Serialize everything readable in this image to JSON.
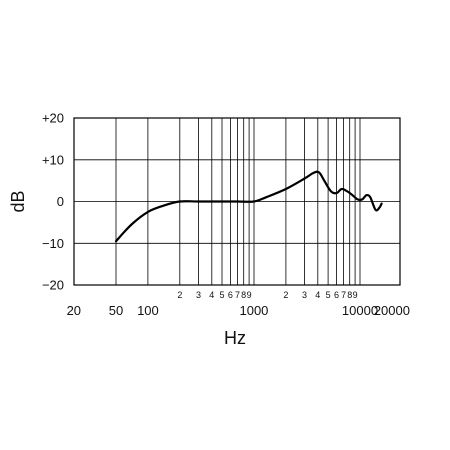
{
  "chart_data": {
    "type": "line",
    "title": "",
    "xlabel": "Hz",
    "ylabel": "dB",
    "x_scale": "log",
    "xlim": [
      20,
      20000
    ],
    "ylim": [
      -20,
      20
    ],
    "grid": true,
    "y_ticks": [
      {
        "value": 20,
        "label": "+20"
      },
      {
        "value": 10,
        "label": "+10"
      },
      {
        "value": 0,
        "label": "0"
      },
      {
        "value": -10,
        "label": "−10"
      },
      {
        "value": -20,
        "label": "−20"
      }
    ],
    "x_major_ticks": [
      {
        "value": 20,
        "label": "20"
      },
      {
        "value": 50,
        "label": "50"
      },
      {
        "value": 100,
        "label": "100"
      },
      {
        "value": 1000,
        "label": "1000"
      },
      {
        "value": 10000,
        "label": "10000"
      },
      {
        "value": 20000,
        "label": "20000"
      }
    ],
    "x_minor_ticks": [
      {
        "value": 200,
        "label": "2"
      },
      {
        "value": 300,
        "label": "3"
      },
      {
        "value": 400,
        "label": "4"
      },
      {
        "value": 500,
        "label": "5"
      },
      {
        "value": 600,
        "label": "6"
      },
      {
        "value": 700,
        "label": "7"
      },
      {
        "value": 800,
        "label": "8"
      },
      {
        "value": 900,
        "label": "9"
      },
      {
        "value": 2000,
        "label": "2"
      },
      {
        "value": 3000,
        "label": "3"
      },
      {
        "value": 4000,
        "label": "4"
      },
      {
        "value": 5000,
        "label": "5"
      },
      {
        "value": 6000,
        "label": "6"
      },
      {
        "value": 7000,
        "label": "7"
      },
      {
        "value": 8000,
        "label": "8"
      },
      {
        "value": 9000,
        "label": "9"
      }
    ],
    "grid_x": [
      50,
      100,
      200,
      300,
      400,
      500,
      600,
      700,
      800,
      900,
      1000,
      2000,
      3000,
      4000,
      5000,
      6000,
      7000,
      8000,
      9000,
      10000
    ],
    "grid_y": [
      20,
      10,
      0,
      -10,
      -20
    ],
    "series": [
      {
        "x": [
          50,
          70,
          100,
          140,
          200,
          300,
          500,
          700,
          1000,
          1300,
          2000,
          3000,
          3600,
          4100,
          4600,
          5300,
          6000,
          6700,
          7500,
          8500,
          9500,
          10500,
          11500,
          12500,
          14000,
          15200,
          16000
        ],
        "y": [
          -9.5,
          -5.5,
          -2.5,
          -1,
          0,
          0,
          0,
          0,
          0,
          1,
          3,
          5.5,
          6.8,
          7,
          5,
          2.5,
          2,
          3,
          2.5,
          1.5,
          0.5,
          0.5,
          1.5,
          1,
          -2,
          -1.5,
          -0.5
        ]
      }
    ]
  }
}
